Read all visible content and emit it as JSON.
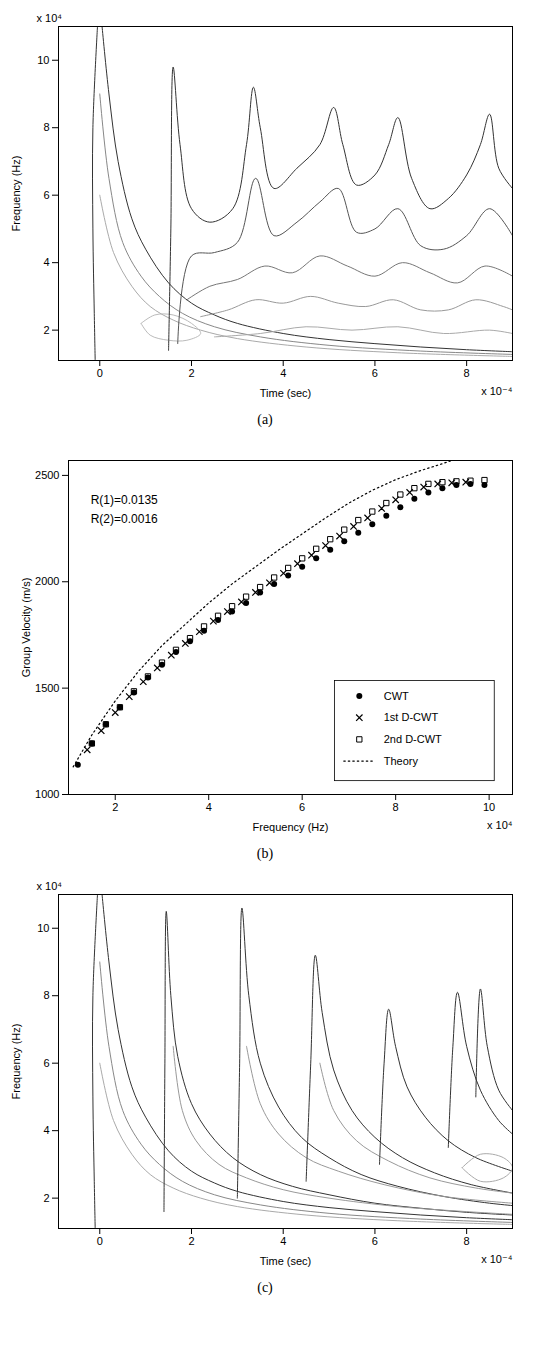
{
  "chart_data": [
    {
      "type": "contour",
      "caption": "(a)",
      "x_label": "Time (sec)",
      "y_label": "Frequency (Hz)",
      "x_note": "x 10⁻⁴",
      "y_note": "x 10⁴",
      "xlim": [
        -0.9,
        9
      ],
      "xticks": [
        0,
        2,
        4,
        6,
        8
      ],
      "ylim": [
        1.1,
        11
      ],
      "yticks": [
        2,
        4,
        6,
        8,
        10
      ],
      "contours": [
        {
          "color": "#333333",
          "x": [
            0.05,
            0.2,
            0.4,
            0.7,
            1.0,
            1.5,
            2.0,
            2.5,
            3,
            4,
            5,
            6,
            7,
            8,
            9
          ],
          "y": [
            11,
            9,
            7,
            5.3,
            4.4,
            3.4,
            2.8,
            2.45,
            2.2,
            1.9,
            1.72,
            1.6,
            1.5,
            1.42,
            1.36
          ]
        },
        {
          "color": "#333333",
          "x": [
            -0.05,
            -0.15,
            -0.15,
            -0.12,
            -0.1
          ],
          "y": [
            11,
            8,
            5,
            2.5,
            1.1
          ]
        },
        {
          "color": "#888888",
          "x": [
            0,
            0.2,
            0.5,
            0.9,
            1.3,
            1.8,
            2.5,
            3.5,
            5,
            7,
            9
          ],
          "y": [
            9,
            6.5,
            4.6,
            3.6,
            3.0,
            2.5,
            2.1,
            1.8,
            1.55,
            1.38,
            1.28
          ]
        },
        {
          "color": "#aaaaaa",
          "x": [
            0,
            0.3,
            0.7,
            1.1,
            1.6,
            2.2,
            3,
            4.5,
            6.5,
            9
          ],
          "y": [
            6,
            4.3,
            3.3,
            2.7,
            2.3,
            2.0,
            1.75,
            1.5,
            1.33,
            1.22
          ]
        },
        {
          "color": "#bbbbbb",
          "x": [
            0.9,
            1.2,
            1.6,
            2.0,
            2.2,
            1.9,
            1.5,
            1.1,
            0.9
          ],
          "y": [
            2.2,
            2.45,
            2.45,
            2.2,
            1.9,
            1.7,
            1.7,
            1.85,
            2.2
          ]
        },
        {
          "color": "#333333",
          "x": [
            1.5,
            1.55,
            1.6,
            1.75,
            2.0,
            2.4,
            2.9,
            3.2,
            3.35,
            3.5,
            3.8,
            4.3,
            4.8,
            5.1,
            5.3,
            5.6,
            6.0,
            6.3,
            6.5,
            6.8,
            7.2,
            7.6,
            8.0,
            8.3,
            8.5,
            8.7,
            9.0
          ],
          "y": [
            1.4,
            5,
            9.8,
            7.5,
            5.6,
            5.2,
            5.6,
            7.5,
            9.2,
            8,
            6.2,
            6.8,
            7.5,
            8.6,
            7.5,
            6.3,
            6.6,
            7.5,
            8.3,
            6.5,
            5.6,
            5.9,
            6.6,
            7.5,
            8.4,
            6.8,
            6.2
          ]
        },
        {
          "color": "#555555",
          "x": [
            1.7,
            2.0,
            2.5,
            3.0,
            3.4,
            3.8,
            4.3,
            4.8,
            5.2,
            5.6,
            6.0,
            6.5,
            7.0,
            7.5,
            8.0,
            8.5,
            9.0
          ],
          "y": [
            1.6,
            4.2,
            4.3,
            4.6,
            6.5,
            4.8,
            5.2,
            5.8,
            6.2,
            4.9,
            5.0,
            5.6,
            4.5,
            4.4,
            4.8,
            5.6,
            4.8
          ]
        },
        {
          "color": "#777777",
          "x": [
            1.9,
            2.4,
            3.0,
            3.6,
            4.2,
            4.8,
            5.4,
            6.0,
            6.6,
            7.2,
            7.8,
            8.4,
            9.0
          ],
          "y": [
            2.9,
            3.3,
            3.5,
            3.9,
            3.7,
            4.2,
            3.9,
            3.6,
            4.0,
            3.7,
            3.4,
            3.9,
            3.6
          ]
        },
        {
          "color": "#999999",
          "x": [
            2.2,
            2.8,
            3.4,
            4.0,
            4.6,
            5.2,
            5.8,
            6.4,
            7.0,
            7.6,
            8.2,
            8.8,
            9.0
          ],
          "y": [
            2.4,
            2.6,
            2.9,
            2.8,
            3.0,
            2.8,
            2.7,
            2.9,
            2.6,
            2.6,
            2.9,
            2.7,
            2.6
          ]
        },
        {
          "color": "#aaaaaa",
          "x": [
            2.5,
            3.5,
            4.5,
            5.5,
            6.5,
            7.5,
            8.5,
            9.0
          ],
          "y": [
            1.8,
            1.9,
            2.1,
            2.0,
            2.1,
            1.9,
            2.0,
            1.9
          ]
        }
      ]
    },
    {
      "type": "scatter",
      "caption": "(b)",
      "x_label": "Frequency (Hz)",
      "y_label": "Group Velocity (m/s)",
      "x_note": "x 10⁴",
      "xlim": [
        1,
        10.5
      ],
      "xticks": [
        2,
        4,
        6,
        8,
        10
      ],
      "ylim": [
        1000,
        2570
      ],
      "yticks": [
        1000,
        1500,
        2000,
        2500
      ],
      "annotations": [
        "R(1)=0.0135",
        "R(2)=0.0016"
      ],
      "legend": "lower right",
      "series": [
        {
          "name": "CWT",
          "type": "scatter",
          "marker": "circle",
          "color": "#000000",
          "x": [
            1.2,
            1.5,
            1.8,
            2.1,
            2.4,
            2.7,
            3.0,
            3.3,
            3.6,
            3.9,
            4.2,
            4.5,
            4.8,
            5.1,
            5.4,
            5.7,
            6.0,
            6.3,
            6.6,
            6.9,
            7.2,
            7.5,
            7.8,
            8.1,
            8.4,
            8.7,
            9.0,
            9.3,
            9.6,
            9.9
          ],
          "values": [
            1140,
            1240,
            1330,
            1410,
            1480,
            1550,
            1610,
            1670,
            1720,
            1770,
            1820,
            1860,
            1900,
            1950,
            1990,
            2030,
            2070,
            2110,
            2150,
            2190,
            2230,
            2270,
            2310,
            2350,
            2390,
            2420,
            2440,
            2455,
            2460,
            2455
          ]
        },
        {
          "name": "1st D-CWT",
          "type": "scatter",
          "marker": "x",
          "color": "#000000",
          "x": [
            1.4,
            1.7,
            2.0,
            2.3,
            2.6,
            2.9,
            3.2,
            3.5,
            3.8,
            4.1,
            4.4,
            4.7,
            5.0,
            5.3,
            5.6,
            5.9,
            6.2,
            6.5,
            6.8,
            7.1,
            7.4,
            7.7,
            8.0,
            8.3,
            8.6,
            8.9,
            9.2,
            9.5
          ],
          "values": [
            1210,
            1300,
            1385,
            1460,
            1530,
            1595,
            1655,
            1710,
            1765,
            1815,
            1860,
            1905,
            1950,
            1995,
            2040,
            2085,
            2125,
            2170,
            2215,
            2260,
            2300,
            2345,
            2385,
            2420,
            2445,
            2460,
            2465,
            2468
          ]
        },
        {
          "name": "2nd D-CWT",
          "type": "scatter",
          "marker": "square",
          "color": "#000000",
          "x": [
            1.5,
            1.8,
            2.1,
            2.4,
            2.7,
            3.0,
            3.3,
            3.6,
            3.9,
            4.2,
            4.5,
            4.8,
            5.1,
            5.4,
            5.7,
            6.0,
            6.3,
            6.6,
            6.9,
            7.2,
            7.5,
            7.8,
            8.1,
            8.4,
            8.7,
            9.0,
            9.3,
            9.6,
            9.9
          ],
          "values": [
            1240,
            1330,
            1410,
            1485,
            1555,
            1620,
            1680,
            1735,
            1790,
            1840,
            1885,
            1930,
            1975,
            2020,
            2065,
            2110,
            2155,
            2200,
            2245,
            2290,
            2330,
            2370,
            2410,
            2440,
            2460,
            2468,
            2472,
            2475,
            2478
          ]
        },
        {
          "name": "Theory",
          "type": "line",
          "line_style": "dotted",
          "color": "#000000",
          "x": [
            1.1,
            1.5,
            2,
            2.5,
            3,
            3.5,
            4,
            4.5,
            5,
            5.5,
            6,
            6.5,
            7,
            7.5,
            8,
            8.5,
            9,
            9.2
          ],
          "values": [
            1130,
            1280,
            1440,
            1580,
            1700,
            1800,
            1900,
            1990,
            2070,
            2150,
            2225,
            2300,
            2370,
            2430,
            2480,
            2520,
            2555,
            2570
          ]
        }
      ]
    },
    {
      "type": "contour",
      "caption": "(c)",
      "x_label": "Time (sec)",
      "y_label": "Frequency (Hz)",
      "x_note": "x 10⁻⁴",
      "y_note": "x 10⁴",
      "xlim": [
        -0.9,
        9
      ],
      "xticks": [
        0,
        2,
        4,
        6,
        8
      ],
      "ylim": [
        1.1,
        11
      ],
      "yticks": [
        2,
        4,
        6,
        8,
        10
      ],
      "contours": [
        {
          "color": "#333333",
          "x": [
            0.05,
            0.2,
            0.4,
            0.7,
            1.0,
            1.5,
            2.0,
            2.5,
            3,
            4,
            5,
            6,
            7,
            8,
            9
          ],
          "y": [
            11,
            9,
            7,
            5.3,
            4.4,
            3.4,
            2.8,
            2.45,
            2.2,
            1.9,
            1.72,
            1.6,
            1.5,
            1.42,
            1.36
          ]
        },
        {
          "color": "#333333",
          "x": [
            -0.05,
            -0.15,
            -0.15,
            -0.12,
            -0.1
          ],
          "y": [
            11,
            8,
            5,
            2.5,
            1.1
          ]
        },
        {
          "color": "#888888",
          "x": [
            0,
            0.2,
            0.5,
            0.9,
            1.3,
            1.8,
            2.5,
            3.5,
            5,
            7,
            9
          ],
          "y": [
            9,
            6.5,
            4.6,
            3.6,
            3.0,
            2.5,
            2.1,
            1.8,
            1.55,
            1.38,
            1.28
          ]
        },
        {
          "color": "#aaaaaa",
          "x": [
            0,
            0.3,
            0.7,
            1.1,
            1.6,
            2.2,
            3,
            4.5,
            6.5,
            9
          ],
          "y": [
            6,
            4.3,
            3.3,
            2.7,
            2.3,
            2.0,
            1.75,
            1.5,
            1.33,
            1.22
          ]
        },
        {
          "color": "#333333",
          "x": [
            1.4,
            1.42,
            1.45,
            1.55,
            1.7,
            2.0,
            2.4,
            2.9,
            3.5,
            4.2,
            5.0,
            6.0,
            7.0,
            8.0,
            9.0
          ],
          "y": [
            1.6,
            6,
            10.5,
            8,
            6.2,
            4.8,
            3.9,
            3.2,
            2.7,
            2.35,
            2.1,
            1.85,
            1.7,
            1.58,
            1.5
          ]
        },
        {
          "color": "#999999",
          "x": [
            1.6,
            1.8,
            2.1,
            2.6,
            3.2,
            4.0,
            5.0,
            6.5,
            8,
            9
          ],
          "y": [
            6.5,
            4.6,
            3.7,
            3.0,
            2.6,
            2.25,
            2.0,
            1.75,
            1.6,
            1.52
          ]
        },
        {
          "color": "#333333",
          "x": [
            3.0,
            3.05,
            3.1,
            3.25,
            3.5,
            3.9,
            4.4,
            5.0,
            5.7,
            6.5,
            7.5,
            8.5,
            9.0
          ],
          "y": [
            2.0,
            6,
            10.6,
            8,
            6,
            4.7,
            3.8,
            3.2,
            2.7,
            2.35,
            2.05,
            1.85,
            1.78
          ]
        },
        {
          "color": "#999999",
          "x": [
            3.2,
            3.5,
            3.9,
            4.5,
            5.2,
            6.2,
            7.5,
            9
          ],
          "y": [
            6.5,
            4.8,
            3.9,
            3.2,
            2.8,
            2.4,
            2.05,
            1.85
          ]
        },
        {
          "color": "#333333",
          "x": [
            4.5,
            4.6,
            4.7,
            4.85,
            5.1,
            5.5,
            6.0,
            6.6,
            7.3,
            8.1,
            9.0
          ],
          "y": [
            2.5,
            6,
            9.2,
            7.5,
            5.8,
            4.6,
            3.8,
            3.2,
            2.75,
            2.4,
            2.15
          ]
        },
        {
          "color": "#999999",
          "x": [
            4.8,
            5.1,
            5.6,
            6.3,
            7.2,
            8.2,
            9
          ],
          "y": [
            6,
            4.6,
            3.7,
            3.1,
            2.6,
            2.3,
            2.15
          ]
        },
        {
          "color": "#333333",
          "x": [
            6.1,
            6.2,
            6.3,
            6.45,
            6.7,
            7.1,
            7.6,
            8.2,
            9.0
          ],
          "y": [
            3,
            6,
            7.6,
            6.5,
            5.3,
            4.4,
            3.7,
            3.2,
            2.8
          ]
        },
        {
          "color": "#333333",
          "x": [
            7.6,
            7.7,
            7.8,
            8.0,
            8.3,
            8.7,
            9.0
          ],
          "y": [
            3.5,
            6.5,
            8.1,
            6.5,
            5.2,
            4.3,
            3.9
          ]
        },
        {
          "color": "#333333",
          "x": [
            8.2,
            8.3,
            8.45,
            8.7,
            9.0
          ],
          "y": [
            5,
            8.2,
            6.5,
            5.2,
            4.6
          ]
        },
        {
          "color": "#aaaaaa",
          "x": [
            7.9,
            8.3,
            8.8,
            9.0,
            8.8,
            8.3,
            7.9
          ],
          "y": [
            2.9,
            3.3,
            3.2,
            2.9,
            2.6,
            2.5,
            2.9
          ]
        }
      ]
    }
  ]
}
